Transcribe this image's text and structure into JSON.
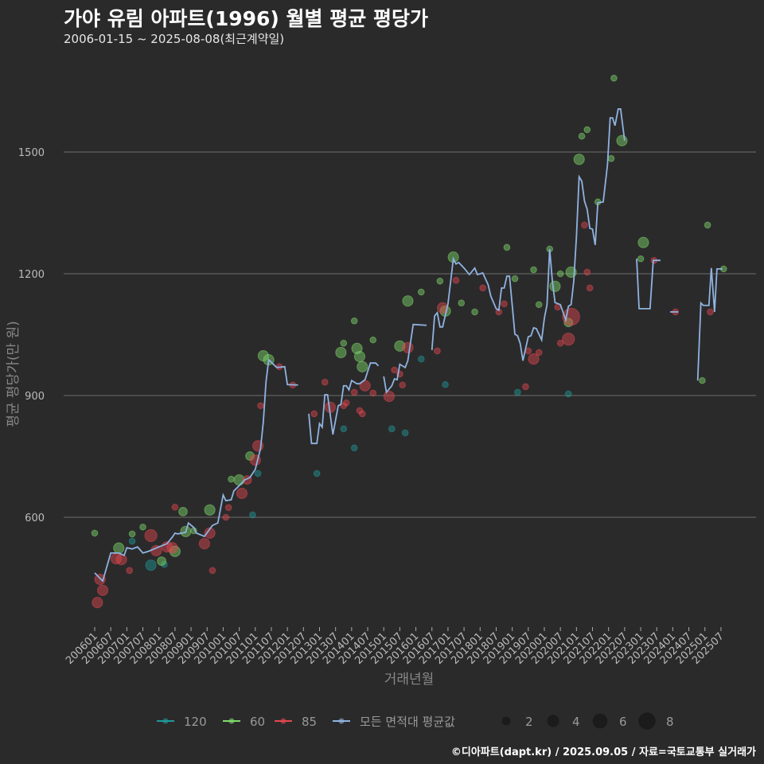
{
  "header": {
    "title": "가야 유림 아파트(1996) 월별 평균 평당가",
    "subtitle": "2006-01-15 ~ 2025-08-08(최근계약일)"
  },
  "footer": "©디아파트(dapt.kr) / 2025.09.05 / 자료=국토교통부 실거래가",
  "chart_data": {
    "type": "scatter",
    "title": "가야 유림 아파트(1996) 월별 평균 평당가",
    "xlabel": "거래년월",
    "ylabel": "평균 평당가(만 원)",
    "x_unit": "months since 2006-01",
    "xlim": [
      0,
      234
    ],
    "ylim": [
      380,
      1700
    ],
    "grid": true,
    "y_ticks": [
      600,
      900,
      1200,
      1500
    ],
    "x_tick_labels": [
      "200601",
      "200607",
      "200701",
      "200707",
      "200801",
      "200807",
      "200901",
      "200907",
      "201001",
      "201007",
      "201101",
      "201107",
      "201201",
      "201207",
      "201301",
      "201307",
      "201401",
      "201407",
      "201501",
      "201507",
      "201601",
      "201607",
      "201701",
      "201707",
      "201801",
      "201807",
      "201901",
      "201907",
      "202001",
      "202007",
      "202101",
      "202107",
      "202201",
      "202207",
      "202301",
      "202307",
      "202401",
      "202407",
      "202501",
      "202507"
    ],
    "legend": {
      "placement": "bottom",
      "series": [
        {
          "name": "120",
          "color": "#1f9a9a"
        },
        {
          "name": "60",
          "color": "#7fdc6a"
        },
        {
          "name": "85",
          "color": "#e4474f"
        },
        {
          "name": "모든 면적대 평균값",
          "color": "#8fb3e0"
        }
      ],
      "sizes": [
        2,
        4,
        6,
        8
      ]
    },
    "mean_line": {
      "name": "모든 면적대 평균값",
      "segments": [
        [
          [
            0,
            463
          ],
          [
            3,
            443
          ],
          [
            6,
            512
          ],
          [
            9,
            512
          ],
          [
            11,
            506
          ],
          [
            12,
            525
          ],
          [
            14,
            522
          ],
          [
            16,
            527
          ],
          [
            18,
            512
          ],
          [
            20,
            516
          ],
          [
            24,
            527
          ],
          [
            27,
            535
          ],
          [
            29,
            551
          ],
          [
            30,
            561
          ],
          [
            31,
            559
          ],
          [
            34,
            563
          ],
          [
            35,
            586
          ],
          [
            37,
            575
          ],
          [
            38,
            561
          ],
          [
            41,
            553
          ],
          [
            44,
            580
          ],
          [
            46,
            586
          ],
          [
            48,
            655
          ],
          [
            49,
            641
          ],
          [
            51,
            643
          ],
          [
            52,
            665
          ],
          [
            54,
            678
          ],
          [
            56,
            692
          ],
          [
            58,
            698
          ],
          [
            60,
            718
          ],
          [
            62,
            771
          ],
          [
            63,
            835
          ],
          [
            64,
            933
          ],
          [
            65,
            988
          ],
          [
            66,
            982
          ],
          [
            68,
            969
          ],
          [
            71,
            971
          ],
          [
            72,
            927
          ],
          [
            76,
            926
          ]
        ],
        [
          [
            80,
            855
          ],
          [
            81,
            782
          ],
          [
            83,
            782
          ],
          [
            84,
            831
          ],
          [
            85,
            822
          ],
          [
            86,
            902
          ],
          [
            87,
            902
          ],
          [
            89,
            804
          ],
          [
            91,
            875
          ],
          [
            92,
            878
          ],
          [
            93,
            924
          ],
          [
            94,
            924
          ],
          [
            95,
            914
          ],
          [
            96,
            937
          ],
          [
            98,
            929
          ],
          [
            99,
            929
          ],
          [
            101,
            939
          ],
          [
            103,
            980
          ],
          [
            105,
            980
          ],
          [
            106,
            973
          ]
        ],
        [
          [
            108,
            947
          ],
          [
            109,
            908
          ],
          [
            111,
            924
          ],
          [
            112,
            941
          ],
          [
            113,
            939
          ],
          [
            114,
            977
          ],
          [
            116,
            969
          ],
          [
            117,
            986
          ],
          [
            119,
            1075
          ],
          [
            124,
            1073
          ]
        ],
        [
          [
            126,
            1012
          ],
          [
            127,
            1096
          ],
          [
            128,
            1104
          ],
          [
            129,
            1069
          ],
          [
            130,
            1069
          ],
          [
            132,
            1126
          ],
          [
            134,
            1237
          ],
          [
            135,
            1224
          ],
          [
            136,
            1228
          ],
          [
            138,
            1214
          ],
          [
            140,
            1198
          ],
          [
            142,
            1214
          ],
          [
            143,
            1198
          ],
          [
            145,
            1202
          ],
          [
            147,
            1173
          ],
          [
            148,
            1145
          ],
          [
            150,
            1114
          ],
          [
            151,
            1110
          ],
          [
            152,
            1165
          ],
          [
            153,
            1165
          ],
          [
            154,
            1194
          ],
          [
            155,
            1194
          ],
          [
            157,
            1051
          ],
          [
            158,
            1047
          ],
          [
            159,
            1028
          ],
          [
            160,
            986
          ],
          [
            162,
            1045
          ],
          [
            163,
            1047
          ],
          [
            164,
            1067
          ],
          [
            165,
            1065
          ],
          [
            167,
            1037
          ],
          [
            168,
            1090
          ],
          [
            169,
            1124
          ],
          [
            170,
            1261
          ],
          [
            171,
            1182
          ],
          [
            172,
            1129
          ],
          [
            174,
            1124
          ],
          [
            176,
            1086
          ],
          [
            177,
            1120
          ],
          [
            178,
            1124
          ],
          [
            179,
            1182
          ],
          [
            180,
            1292
          ],
          [
            181,
            1439
          ],
          [
            182,
            1428
          ],
          [
            183,
            1379
          ],
          [
            184,
            1359
          ],
          [
            185,
            1312
          ],
          [
            186,
            1310
          ],
          [
            187,
            1271
          ],
          [
            188,
            1375
          ],
          [
            190,
            1377
          ],
          [
            191.6,
            1469
          ],
          [
            192.6,
            1584
          ],
          [
            193.5,
            1584
          ],
          [
            194.4,
            1565
          ],
          [
            195.6,
            1606
          ],
          [
            196.5,
            1606
          ],
          [
            198,
            1528
          ]
        ],
        [
          [
            202.5,
            1237
          ],
          [
            203.4,
            1114
          ],
          [
            207.5,
            1114
          ],
          [
            208.7,
            1233
          ],
          [
            211.4,
            1233
          ]
        ],
        [
          [
            215,
            1106
          ],
          [
            218,
            1106
          ]
        ],
        [
          [
            225.3,
            937
          ],
          [
            226.5,
            1128
          ],
          [
            227.4,
            1122
          ],
          [
            229.5,
            1122
          ],
          [
            230.4,
            1214
          ],
          [
            231.6,
            1106
          ],
          [
            232.5,
            1212
          ],
          [
            234.6,
            1212
          ]
        ]
      ]
    },
    "points": {
      "120": [
        [
          21,
          482,
          3
        ],
        [
          14,
          541,
          1
        ],
        [
          26,
          484,
          1
        ],
        [
          61,
          708,
          1
        ],
        [
          59,
          606,
          1
        ],
        [
          83,
          708,
          1
        ],
        [
          93,
          818,
          1
        ],
        [
          97,
          771,
          1
        ],
        [
          111,
          818,
          1
        ],
        [
          116,
          808,
          1
        ],
        [
          122,
          990,
          1
        ],
        [
          131,
          927,
          1
        ],
        [
          158,
          908,
          1
        ],
        [
          177,
          904,
          1
        ]
      ],
      "60": [
        [
          0,
          561,
          1
        ],
        [
          9,
          524,
          3
        ],
        [
          14,
          559,
          1
        ],
        [
          18,
          576,
          1
        ],
        [
          25,
          492,
          2
        ],
        [
          30,
          516,
          3
        ],
        [
          33,
          614,
          2
        ],
        [
          34,
          565,
          3
        ],
        [
          37,
          567,
          1
        ],
        [
          43,
          618,
          3
        ],
        [
          51,
          694,
          1
        ],
        [
          54,
          692,
          3
        ],
        [
          58,
          751,
          2
        ],
        [
          63,
          998,
          3
        ],
        [
          65,
          988,
          3
        ],
        [
          92,
          1006,
          3
        ],
        [
          98,
          1016,
          3
        ],
        [
          99,
          996,
          3
        ],
        [
          100,
          971,
          3
        ],
        [
          97,
          1084,
          1
        ],
        [
          93,
          1029,
          1
        ],
        [
          104,
          1037,
          1
        ],
        [
          114,
          1022,
          3
        ],
        [
          117,
          1133,
          3
        ],
        [
          122,
          1155,
          1
        ],
        [
          129,
          1182,
          1
        ],
        [
          131,
          1108,
          3
        ],
        [
          134,
          1241,
          3
        ],
        [
          137,
          1128,
          1
        ],
        [
          142,
          1106,
          1
        ],
        [
          154,
          1265,
          1
        ],
        [
          157,
          1188,
          1
        ],
        [
          164,
          1210,
          1
        ],
        [
          166,
          1124,
          1
        ],
        [
          170,
          1261,
          1
        ],
        [
          172,
          1169,
          3
        ],
        [
          174,
          1200,
          1
        ],
        [
          178,
          1204,
          3
        ],
        [
          181,
          1482,
          3
        ],
        [
          182,
          1539,
          1
        ],
        [
          184,
          1555,
          1
        ],
        [
          194,
          1682,
          1
        ],
        [
          193,
          1484,
          1
        ],
        [
          197,
          1528,
          3
        ],
        [
          188,
          1377,
          1
        ],
        [
          205,
          1277,
          3
        ],
        [
          204,
          1237,
          1
        ],
        [
          229,
          1320,
          1
        ],
        [
          227,
          937,
          1
        ],
        [
          235,
          1212,
          1
        ],
        [
          177,
          1080,
          2
        ]
      ],
      "85": [
        [
          2,
          447,
          3
        ],
        [
          3,
          420,
          3
        ],
        [
          1,
          390,
          3
        ],
        [
          8,
          498,
          3
        ],
        [
          10,
          496,
          3
        ],
        [
          21,
          555,
          4
        ],
        [
          23,
          518,
          3
        ],
        [
          27,
          527,
          3
        ],
        [
          29,
          525,
          3
        ],
        [
          43,
          561,
          3
        ],
        [
          41,
          535,
          3
        ],
        [
          44,
          469,
          1
        ],
        [
          13,
          469,
          1
        ],
        [
          30,
          625,
          1
        ],
        [
          50,
          624,
          1
        ],
        [
          49,
          600,
          1
        ],
        [
          55,
          659,
          3
        ],
        [
          57,
          692,
          2
        ],
        [
          60,
          741,
          3
        ],
        [
          61,
          776,
          3
        ],
        [
          62,
          875,
          1
        ],
        [
          69,
          971,
          1
        ],
        [
          74,
          926,
          1
        ],
        [
          82,
          855,
          1
        ],
        [
          86,
          933,
          1
        ],
        [
          88,
          871,
          3
        ],
        [
          93,
          875,
          1
        ],
        [
          94,
          882,
          1
        ],
        [
          99,
          863,
          1
        ],
        [
          100,
          855,
          1
        ],
        [
          97,
          908,
          1
        ],
        [
          101,
          924,
          3
        ],
        [
          104,
          906,
          1
        ],
        [
          110,
          898,
          3
        ],
        [
          112,
          963,
          1
        ],
        [
          114,
          953,
          1
        ],
        [
          115,
          926,
          1
        ],
        [
          117,
          1018,
          3
        ],
        [
          128,
          1010,
          1
        ],
        [
          130,
          1116,
          3
        ],
        [
          135,
          1184,
          1
        ],
        [
          145,
          1165,
          1
        ],
        [
          151,
          1106,
          1
        ],
        [
          153,
          1126,
          1
        ],
        [
          161,
          922,
          1
        ],
        [
          162,
          1010,
          1
        ],
        [
          164,
          990,
          3
        ],
        [
          166,
          1006,
          1
        ],
        [
          178,
          1094,
          8
        ],
        [
          177,
          1039,
          4
        ],
        [
          174,
          1029,
          1
        ],
        [
          173,
          1118,
          1
        ],
        [
          183,
          1320,
          1
        ],
        [
          184,
          1204,
          1
        ],
        [
          185,
          1165,
          1
        ],
        [
          209,
          1233,
          1
        ],
        [
          217,
          1106,
          1
        ],
        [
          230,
          1106,
          1
        ]
      ]
    }
  }
}
